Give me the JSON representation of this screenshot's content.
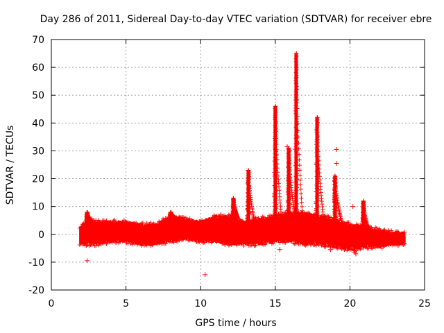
{
  "chart_data": {
    "type": "scatter",
    "title": "Day 286 of 2011, Sidereal Day-to-day VTEC variation (SDTVAR) for receiver ebre",
    "xlabel": "GPS time / hours",
    "ylabel": "SDTVAR / TECUs",
    "xlim": [
      0,
      25
    ],
    "ylim": [
      -20,
      70
    ],
    "xticks": [
      0,
      5,
      10,
      15,
      20,
      25
    ],
    "yticks": [
      -20,
      -10,
      0,
      10,
      20,
      30,
      40,
      50,
      60,
      70
    ],
    "xtick_labels": [
      "0",
      "5",
      "10",
      "15",
      "20",
      "25"
    ],
    "ytick_labels": [
      "-20",
      "-10",
      "0",
      "10",
      "20",
      "30",
      "40",
      "50",
      "60",
      "70"
    ],
    "grid": true,
    "marker": "+",
    "series_color": "#ff0000",
    "series": [
      {
        "name": "SDTVAR",
        "envelope": {
          "x": [
            1.9,
            2.5,
            3.0,
            4.0,
            5.0,
            6.0,
            7.0,
            8.0,
            9.0,
            10.0,
            11.0,
            12.0,
            13.0,
            14.0,
            15.0,
            16.0,
            17.0,
            18.0,
            19.0,
            20.0,
            21.0,
            22.0,
            23.0,
            23.7
          ],
          "upper": [
            2,
            5,
            4,
            4,
            4,
            3,
            3,
            6,
            5,
            4,
            6,
            6,
            4,
            5,
            6,
            7,
            7,
            6,
            5,
            3,
            2,
            1,
            0,
            0
          ],
          "lower": [
            -3,
            -3,
            -3,
            -2,
            -2,
            -3,
            -3,
            -2,
            -1,
            -2,
            -2,
            -3,
            -3,
            -3,
            -2,
            -2,
            -3,
            -3,
            -4,
            -5,
            -4,
            -4,
            -3,
            -3
          ]
        },
        "peaks": [
          {
            "x": 2.4,
            "y": 8
          },
          {
            "x": 8.0,
            "y": 8
          },
          {
            "x": 12.2,
            "y": 13
          },
          {
            "x": 13.2,
            "y": 23
          },
          {
            "x": 15.0,
            "y": 46
          },
          {
            "x": 15.9,
            "y": 31
          },
          {
            "x": 16.4,
            "y": 65
          },
          {
            "x": 17.8,
            "y": 42
          },
          {
            "x": 19.0,
            "y": 21
          },
          {
            "x": 20.9,
            "y": 12
          }
        ],
        "outliers": [
          {
            "x": 2.4,
            "y": -9.5
          },
          {
            "x": 10.3,
            "y": -14.5
          },
          {
            "x": 15.3,
            "y": -5.5
          },
          {
            "x": 18.7,
            "y": -5.5
          },
          {
            "x": 20.3,
            "y": -6.5
          },
          {
            "x": 20.4,
            "y": -7
          },
          {
            "x": 19.1,
            "y": 30.5
          },
          {
            "x": 19.1,
            "y": 25.5
          },
          {
            "x": 15.8,
            "y": 31.5
          },
          {
            "x": 20.2,
            "y": 10
          }
        ]
      }
    ]
  }
}
